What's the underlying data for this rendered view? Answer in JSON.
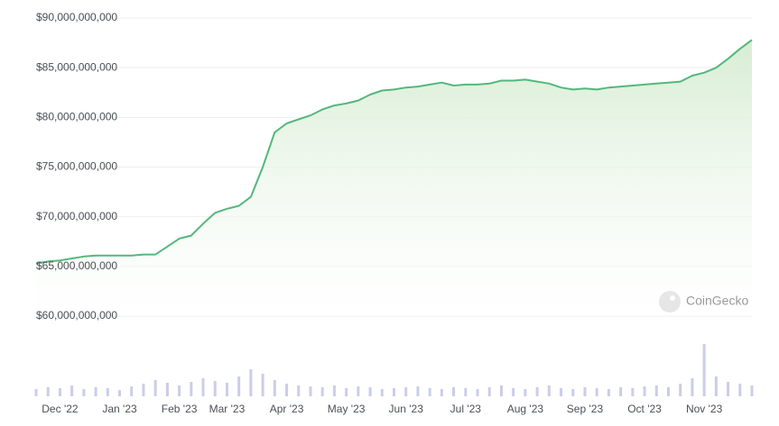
{
  "chart_data": {
    "type": "area",
    "categories": [
      null,
      null,
      "Dec '22",
      null,
      null,
      null,
      null,
      "Jan '23",
      null,
      null,
      null,
      null,
      "Feb '23",
      null,
      null,
      null,
      "Mar '23",
      null,
      null,
      null,
      null,
      "Apr '23",
      null,
      null,
      null,
      null,
      "May '23",
      null,
      null,
      null,
      null,
      "Jun '23",
      null,
      null,
      null,
      null,
      "Jul '23",
      null,
      null,
      null,
      null,
      "Aug '23",
      null,
      null,
      null,
      null,
      "Sep '23",
      null,
      null,
      null,
      null,
      "Oct '23",
      null,
      null,
      null,
      null,
      "Nov '23",
      null,
      null,
      null,
      null
    ],
    "values": [
      65300000000,
      65500000000,
      65600000000,
      65800000000,
      66000000000,
      66100000000,
      66100000000,
      66100000000,
      66100000000,
      66200000000,
      66200000000,
      67000000000,
      67800000000,
      68100000000,
      69300000000,
      70400000000,
      70800000000,
      71100000000,
      72000000000,
      75000000000,
      78500000000,
      79400000000,
      79800000000,
      80200000000,
      80800000000,
      81200000000,
      81400000000,
      81700000000,
      82300000000,
      82700000000,
      82800000000,
      83000000000,
      83100000000,
      83300000000,
      83500000000,
      83200000000,
      83300000000,
      83300000000,
      83400000000,
      83700000000,
      83700000000,
      83800000000,
      83600000000,
      83400000000,
      83000000000,
      82800000000,
      82900000000,
      82800000000,
      83000000000,
      83100000000,
      83200000000,
      83300000000,
      83400000000,
      83500000000,
      83600000000,
      84200000000,
      84500000000,
      85000000000,
      85900000000,
      86900000000,
      87800000000
    ],
    "volume": [
      8,
      10,
      9,
      12,
      8,
      10,
      9,
      7,
      11,
      14,
      18,
      15,
      12,
      16,
      20,
      17,
      15,
      22,
      30,
      25,
      18,
      14,
      12,
      11,
      10,
      12,
      9,
      11,
      10,
      8,
      9,
      10,
      11,
      9,
      8,
      10,
      9,
      8,
      10,
      12,
      9,
      8,
      10,
      12,
      9,
      8,
      10,
      9,
      8,
      10,
      9,
      11,
      12,
      10,
      14,
      20,
      58,
      22,
      16,
      14,
      12
    ],
    "color": "#55b77c",
    "volume_color": "#cbcde9",
    "ylim": [
      60000000000,
      90000000000
    ],
    "yticks": [
      {
        "value": 60000000000,
        "label": "$60,000,000,000"
      },
      {
        "value": 65000000000,
        "label": "$65,000,000,000"
      },
      {
        "value": 70000000000,
        "label": "$70,000,000,000"
      },
      {
        "value": 75000000000,
        "label": "$75,000,000,000"
      },
      {
        "value": 80000000000,
        "label": "$80,000,000,000"
      },
      {
        "value": 85000000000,
        "label": "$85,000,000,000"
      },
      {
        "value": 90000000000,
        "label": "$90,000,000,000"
      }
    ],
    "grid": true,
    "watermark": "CoinGecko"
  }
}
